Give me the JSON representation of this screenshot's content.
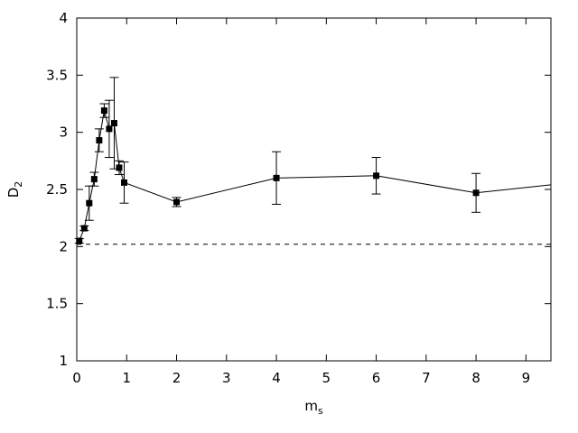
{
  "chart_data": {
    "type": "scatter",
    "xlabel": "m",
    "xlabel_subscript": "s",
    "ylabel": "D",
    "ylabel_subscript": "2",
    "xlim": [
      0,
      9.5
    ],
    "ylim": [
      1,
      4
    ],
    "xticks": [
      0,
      1,
      2,
      3,
      4,
      5,
      6,
      7,
      8,
      9
    ],
    "yticks": [
      1,
      1.5,
      2,
      2.5,
      3,
      3.5,
      4
    ],
    "xtick_labels": [
      "0",
      "1",
      "2",
      "3",
      "4",
      "5",
      "6",
      "7",
      "8",
      "9"
    ],
    "ytick_labels": [
      "1",
      "1.5",
      "2",
      "2.5",
      "3",
      "3.5",
      "4"
    ],
    "grid": false,
    "legend": "none",
    "series": [
      {
        "line": "solid",
        "marker": "square",
        "color": "#000000",
        "points": [
          {
            "x": 0.05,
            "y": 2.05,
            "err": 0.02
          },
          {
            "x": 0.15,
            "y": 2.16,
            "err": 0.02
          },
          {
            "x": 0.25,
            "y": 2.38,
            "err": 0.15
          },
          {
            "x": 0.35,
            "y": 2.59,
            "err": 0.06
          },
          {
            "x": 0.45,
            "y": 2.93,
            "err": 0.1
          },
          {
            "x": 0.55,
            "y": 3.19,
            "err": 0.06
          },
          {
            "x": 0.65,
            "y": 3.03,
            "err": 0.25
          },
          {
            "x": 0.75,
            "y": 3.08,
            "err": 0.4
          },
          {
            "x": 0.85,
            "y": 2.69,
            "err": 0.06
          },
          {
            "x": 0.95,
            "y": 2.56,
            "err": 0.18
          },
          {
            "x": 2,
            "y": 2.39,
            "err": 0.04
          },
          {
            "x": 4,
            "y": 2.6,
            "err": 0.23
          },
          {
            "x": 6,
            "y": 2.62,
            "err": 0.16
          },
          {
            "x": 8,
            "y": 2.47,
            "err": 0.17
          },
          {
            "x": 9.5,
            "y": 2.54,
            "err": 0
          }
        ]
      }
    ],
    "reference_line": {
      "y": 2.02,
      "style": "dashed",
      "color": "#000000"
    }
  }
}
